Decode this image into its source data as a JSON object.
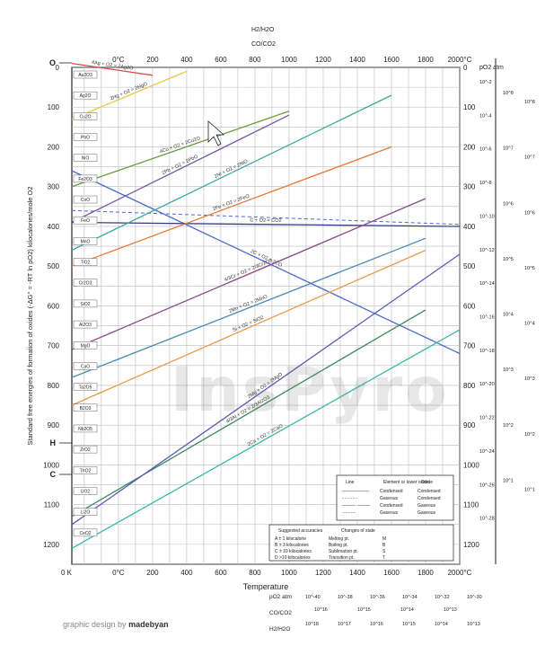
{
  "chart_data": {
    "type": "line",
    "title": "",
    "xlabel": "Temperature",
    "ylabel": "Standard free energies of formation of oxides (-ΔG° = -RT ln pO2) kilocalories/mole O2",
    "xlim": [
      -273,
      2000
    ],
    "ylim": [
      0,
      1250
    ],
    "y_inverted": true,
    "grid": true,
    "x_ticks_celsius": [
      "0°C",
      "200",
      "400",
      "600",
      "800",
      "1000",
      "1200",
      "1400",
      "1600",
      "1800",
      "2000°C"
    ],
    "x_tick_values": [
      0,
      200,
      400,
      600,
      800,
      1000,
      1200,
      1400,
      1600,
      1800,
      2000
    ],
    "y_ticks": [
      "0",
      "100",
      "200",
      "300",
      "400",
      "500",
      "600",
      "700",
      "800",
      "900",
      "1000",
      "1100",
      "1200"
    ],
    "y_tick_values": [
      0,
      100,
      200,
      300,
      400,
      500,
      600,
      700,
      800,
      900,
      1000,
      1100,
      1200
    ],
    "kelvin_origin_label": "0 K",
    "series": [
      {
        "name": "4Ag + O2 = 2Ag2O",
        "color": "#d84a4a",
        "x": [
          -273,
          200
        ],
        "y": [
          -10,
          20
        ]
      },
      {
        "name": "2Hg + O2 = 2HgO",
        "color": "#e8c84a",
        "x": [
          -273,
          400
        ],
        "y": [
          130,
          10
        ]
      },
      {
        "name": "4Cu + O2 = 2Cu2O",
        "color": "#6a9a3a",
        "x": [
          -273,
          1000
        ],
        "y": [
          300,
          110
        ]
      },
      {
        "name": "2Pb + O2 = 2PbO",
        "color": "#7a52a8",
        "x": [
          -273,
          1000
        ],
        "y": [
          390,
          120
        ]
      },
      {
        "name": "2C + O2 = 2CO",
        "color": "#4a6ac8",
        "x": [
          -273,
          2000
        ],
        "y": [
          260,
          720
        ]
      },
      {
        "name": "C + O2 = CO2",
        "color": "#3a3a8a",
        "x": [
          -273,
          2000
        ],
        "y": [
          390,
          400
        ]
      },
      {
        "name": "2Ni + O2 = 2NiO",
        "color": "#3aa89a",
        "x": [
          -273,
          1600
        ],
        "y": [
          460,
          70
        ]
      },
      {
        "name": "2Fe + O2 = 2FeO",
        "color": "#e87a3a",
        "x": [
          -273,
          1600
        ],
        "y": [
          500,
          200
        ]
      },
      {
        "name": "4/3Cr + O2 = 2/3Cr2O3",
        "color": "#8a4a8a",
        "x": [
          -273,
          1800
        ],
        "y": [
          710,
          330
        ]
      },
      {
        "name": "2Mn + O2 = 2MnO",
        "color": "#4a8ab8",
        "x": [
          -273,
          1800
        ],
        "y": [
          780,
          430
        ]
      },
      {
        "name": "Si + O2 = SiO2",
        "color": "#e89a4a",
        "x": [
          -273,
          1800
        ],
        "y": [
          850,
          460
        ]
      },
      {
        "name": "4/3Al + O2 = 2/3Al2O3",
        "color": "#3a8a5a",
        "x": [
          -273,
          1800
        ],
        "y": [
          1130,
          610
        ]
      },
      {
        "name": "2Mg + O2 = 2MgO",
        "color": "#5a5ab8",
        "x": [
          -273,
          2000
        ],
        "y": [
          1150,
          470
        ]
      },
      {
        "name": "2Ca + O2 = 2CaO",
        "color": "#3ab8a8",
        "x": [
          -273,
          2000
        ],
        "y": [
          1210,
          660
        ]
      }
    ],
    "annotations_left": [
      "Au2O3",
      "Ag2O",
      "Cu2O",
      "PbO",
      "NiO",
      "Fe2O3",
      "CoO",
      "FeO",
      "MnO",
      "TiO2",
      "Cr2O3",
      "SiO2",
      "Al2O3",
      "MgO",
      "CaO",
      "Ta2O5",
      "B2O3",
      "Nb2O5",
      "ZrO2",
      "ThO2",
      "UO2",
      "Li2O",
      "CeO2"
    ],
    "right_axis_title": "pO2 atm",
    "right_axis_ticks": [
      "10^-2",
      "10^-4",
      "10^-6",
      "10^-8",
      "10^-10",
      "10^-12",
      "10^-14",
      "10^-16",
      "10^-18",
      "10^-20",
      "10^-22",
      "10^-24",
      "10^-26",
      "10^-28"
    ],
    "co_co2_scale": [
      "10^8",
      "10^7",
      "10^6",
      "10^5",
      "10^4",
      "10^3",
      "10^2",
      "10^1"
    ],
    "h2_h2o_scale": [
      "10^8",
      "10^7",
      "10^6",
      "10^5",
      "10^4",
      "10^3",
      "10^2",
      "10^1"
    ],
    "bottom_po2_scale": [
      "10^-40",
      "10^-38",
      "10^-36",
      "10^-34",
      "10^-32",
      "10^-30"
    ],
    "bottom_co_scale": [
      "10^16",
      "10^15",
      "10^14",
      "10^13"
    ],
    "bottom_h2_scale": [
      "10^18",
      "10^17",
      "10^16",
      "10^15",
      "10^14",
      "10^13"
    ],
    "left_markers": [
      "O",
      "H",
      "C"
    ],
    "legend_state_changes": {
      "header": [
        "Line",
        "Element or lower oxide",
        "Oxide"
      ],
      "rows": [
        [
          "——————",
          "Condensed",
          "Condensed"
        ],
        [
          "- - - - - -",
          "Gaseous",
          "Condensed"
        ],
        [
          "——— ———",
          "Condensed",
          "Gaseous"
        ],
        [
          "-·-·-·-·-",
          "Gaseous",
          "Gaseous"
        ]
      ]
    },
    "legend_accuracies": {
      "header": [
        "Suggested accuracies",
        "Changes of state"
      ],
      "rows": [
        [
          "A  ± 1 kilocalorie",
          "Melting pt.",
          "M"
        ],
        [
          "B  ± 3 kilocalories",
          "Boiling pt.",
          "B"
        ],
        [
          "C  ± 10 kilocalories",
          "Sublimation pt.",
          "S"
        ],
        [
          "D  >10 kilocalories",
          "Transition pt.",
          "T"
        ]
      ]
    },
    "co_co2_label": "CO/CO2",
    "h2_h2o_label": "H2/H2O",
    "right_axis_label": "pO2 atm"
  },
  "credit": {
    "prefix": "graphic design by",
    "author": "madebyan"
  },
  "watermark": "InsPyro"
}
